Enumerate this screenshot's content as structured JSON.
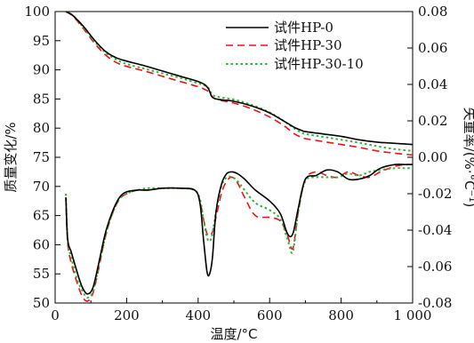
{
  "chart_data": {
    "type": "line",
    "x_axis": {
      "label": "温度/°C",
      "range": [
        0,
        1000
      ],
      "ticks": [
        0,
        200,
        400,
        600,
        800,
        1000
      ],
      "tick_labels": [
        "0",
        "200",
        "400",
        "600",
        "800",
        "1 000"
      ]
    },
    "y_axis_left": {
      "label": "质量变化/%",
      "range": [
        50,
        100
      ],
      "ticks": [
        50,
        55,
        60,
        65,
        70,
        75,
        80,
        85,
        90,
        95,
        100
      ],
      "tick_labels": [
        "50",
        "55",
        "60",
        "65",
        "70",
        "75",
        "80",
        "85",
        "90",
        "95",
        "100"
      ]
    },
    "y_axis_right": {
      "label": "失重率/(%·°C⁻¹)",
      "range": [
        -0.08,
        0.08
      ],
      "ticks": [
        -0.08,
        -0.06,
        -0.04,
        -0.02,
        0.0,
        0.02,
        0.04,
        0.06,
        0.08
      ],
      "tick_labels": [
        "-0.08",
        "-0.06",
        "-0.04",
        "-0.02",
        "0.00",
        "0.02",
        "0.04",
        "0.06",
        "0.08"
      ]
    },
    "legend": {
      "placement": "top-right",
      "entries": [
        {
          "label": "试件HP-0",
          "color": "#000000",
          "dash": "solid"
        },
        {
          "label": "试件HP-30",
          "color": "#e8141b",
          "dash": "dashed"
        },
        {
          "label": "试件HP-30-10",
          "color": "#35b339",
          "dash": "dotted"
        }
      ]
    },
    "series": [
      {
        "name": "试件HP-0",
        "kind": "TG",
        "axis": "left",
        "x": [
          30,
          50,
          80,
          110,
          140,
          170,
          200,
          250,
          300,
          350,
          400,
          420,
          430,
          440,
          460,
          500,
          550,
          600,
          640,
          670,
          690,
          700,
          750,
          800,
          850,
          900,
          950,
          1000
        ],
        "y": [
          100,
          99.3,
          97.4,
          95.1,
          93.2,
          92.1,
          91.5,
          90.7,
          89.8,
          88.9,
          88.0,
          87.4,
          86.6,
          85.3,
          84.9,
          84.6,
          83.8,
          82.6,
          81.2,
          80.1,
          79.6,
          79.4,
          79.0,
          78.6,
          78.0,
          77.6,
          77.4,
          77.2
        ]
      },
      {
        "name": "试件HP-30",
        "kind": "TG",
        "axis": "left",
        "x": [
          30,
          50,
          80,
          110,
          140,
          170,
          200,
          250,
          300,
          350,
          400,
          420,
          430,
          440,
          460,
          500,
          550,
          600,
          640,
          670,
          690,
          700,
          750,
          800,
          850,
          900,
          950,
          1000
        ],
        "y": [
          100,
          99.2,
          97.0,
          94.6,
          92.6,
          91.3,
          90.6,
          89.8,
          88.9,
          88.0,
          87.1,
          86.6,
          86.2,
          85.3,
          84.8,
          84.3,
          83.3,
          81.9,
          80.4,
          79.0,
          78.4,
          78.2,
          77.7,
          77.2,
          76.7,
          76.1,
          75.7,
          75.4
        ]
      },
      {
        "name": "试件HP-30-10",
        "kind": "TG",
        "axis": "left",
        "x": [
          30,
          50,
          80,
          110,
          140,
          170,
          200,
          250,
          300,
          350,
          400,
          420,
          430,
          440,
          460,
          500,
          550,
          600,
          640,
          670,
          690,
          700,
          750,
          800,
          850,
          900,
          950,
          1000
        ],
        "y": [
          100,
          99.3,
          97.2,
          94.9,
          93.0,
          91.8,
          91.0,
          90.2,
          89.4,
          88.6,
          87.7,
          87.3,
          86.8,
          85.7,
          85.3,
          84.9,
          84.0,
          82.7,
          81.2,
          79.9,
          79.2,
          79.0,
          78.5,
          78.0,
          77.5,
          76.9,
          76.4,
          76.1
        ]
      },
      {
        "name": "试件HP-0",
        "kind": "DTG",
        "axis": "right",
        "x": [
          30,
          35,
          45,
          60,
          75,
          90,
          105,
          120,
          140,
          160,
          180,
          200,
          230,
          260,
          300,
          350,
          390,
          405,
          415,
          425,
          432,
          440,
          450,
          465,
          480,
          495,
          510,
          530,
          560,
          600,
          630,
          650,
          665,
          680,
          700,
          730,
          760,
          790,
          820,
          850,
          880,
          910,
          950,
          980,
          1000
        ],
        "y": [
          -0.022,
          -0.045,
          -0.052,
          -0.062,
          -0.071,
          -0.075,
          -0.072,
          -0.06,
          -0.042,
          -0.03,
          -0.022,
          -0.019,
          -0.018,
          -0.018,
          -0.017,
          -0.017,
          -0.018,
          -0.025,
          -0.045,
          -0.063,
          -0.064,
          -0.055,
          -0.03,
          -0.015,
          -0.009,
          -0.008,
          -0.009,
          -0.012,
          -0.018,
          -0.024,
          -0.031,
          -0.042,
          -0.042,
          -0.028,
          -0.012,
          -0.01,
          -0.007,
          -0.008,
          -0.012,
          -0.012,
          -0.01,
          -0.006,
          -0.004,
          -0.004,
          -0.004
        ]
      },
      {
        "name": "试件HP-30",
        "kind": "DTG",
        "axis": "right",
        "x": [
          30,
          35,
          45,
          60,
          75,
          90,
          105,
          120,
          140,
          160,
          180,
          200,
          230,
          260,
          300,
          350,
          390,
          405,
          415,
          425,
          432,
          440,
          450,
          465,
          480,
          495,
          510,
          530,
          560,
          600,
          630,
          650,
          665,
          680,
          700,
          730,
          760,
          790,
          820,
          850,
          880,
          910,
          950,
          980,
          1000
        ],
        "y": [
          -0.022,
          -0.047,
          -0.058,
          -0.068,
          -0.076,
          -0.079,
          -0.075,
          -0.063,
          -0.044,
          -0.031,
          -0.023,
          -0.02,
          -0.018,
          -0.018,
          -0.017,
          -0.017,
          -0.018,
          -0.024,
          -0.034,
          -0.042,
          -0.043,
          -0.041,
          -0.033,
          -0.02,
          -0.013,
          -0.011,
          -0.014,
          -0.022,
          -0.032,
          -0.033,
          -0.035,
          -0.043,
          -0.05,
          -0.03,
          -0.012,
          -0.008,
          -0.01,
          -0.011,
          -0.008,
          -0.01,
          -0.011,
          -0.008,
          -0.005,
          -0.004,
          -0.004
        ]
      },
      {
        "name": "试件HP-30-10",
        "kind": "DTG",
        "axis": "right",
        "x": [
          30,
          35,
          45,
          60,
          75,
          90,
          105,
          120,
          140,
          160,
          180,
          200,
          230,
          260,
          300,
          350,
          390,
          405,
          415,
          425,
          432,
          440,
          450,
          465,
          480,
          495,
          510,
          530,
          560,
          600,
          630,
          650,
          665,
          680,
          700,
          730,
          760,
          790,
          820,
          850,
          880,
          910,
          950,
          980,
          1000
        ],
        "y": [
          -0.02,
          -0.046,
          -0.055,
          -0.066,
          -0.073,
          -0.077,
          -0.074,
          -0.062,
          -0.044,
          -0.031,
          -0.023,
          -0.02,
          -0.018,
          -0.017,
          -0.017,
          -0.017,
          -0.018,
          -0.023,
          -0.034,
          -0.044,
          -0.046,
          -0.042,
          -0.03,
          -0.016,
          -0.011,
          -0.011,
          -0.013,
          -0.018,
          -0.025,
          -0.029,
          -0.034,
          -0.045,
          -0.052,
          -0.03,
          -0.013,
          -0.011,
          -0.011,
          -0.011,
          -0.009,
          -0.01,
          -0.008,
          -0.007,
          -0.006,
          -0.006,
          -0.006
        ]
      }
    ]
  }
}
